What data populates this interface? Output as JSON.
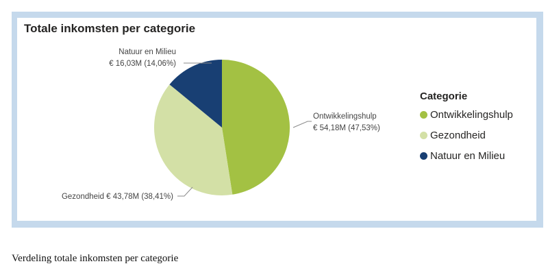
{
  "chart_data": {
    "type": "pie",
    "title": "Totale inkomsten per categorie",
    "legend_title": "Categorie",
    "legend_placement": "right",
    "slices": [
      {
        "name": "Ontwikkelingshulp",
        "value": 54.18,
        "value_label": "€ 54,18M (47,53%)",
        "percent": 47.53,
        "color": "#a3c143"
      },
      {
        "name": "Gezondheid",
        "value": 43.78,
        "value_label": "€ 43,78M (38,41%)",
        "percent": 38.41,
        "color": "#d3e0a6"
      },
      {
        "name": "Natuur en Milieu",
        "value": 16.03,
        "value_label": "€ 16,03M (14,06%)",
        "percent": 14.06,
        "color": "#183f73"
      }
    ]
  },
  "caption": "Verdeling totale inkomsten per categorie"
}
